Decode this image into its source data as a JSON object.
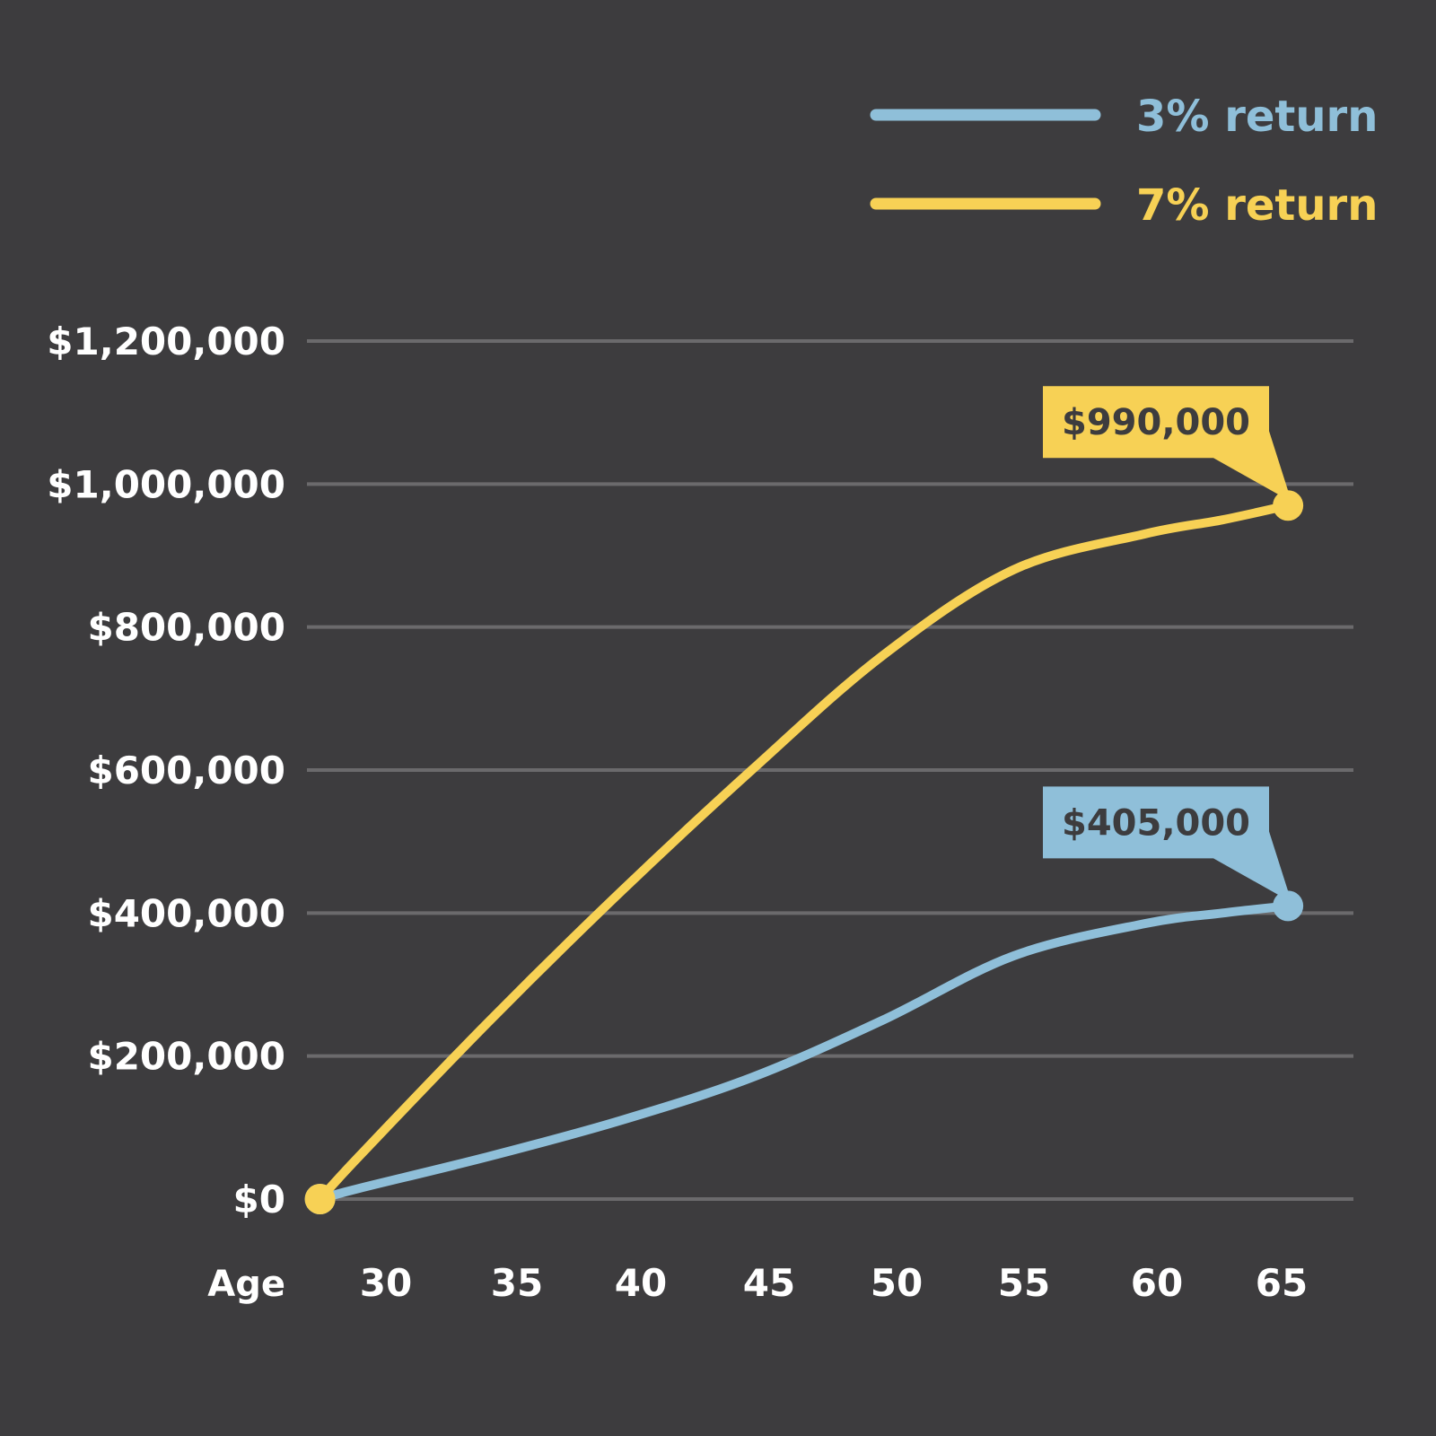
{
  "background": "#3d3c3e",
  "chart_data": {
    "type": "line",
    "xlabel": "Age",
    "ylabel": "",
    "title": "",
    "x_ticks": [
      30,
      35,
      40,
      45,
      50,
      55,
      60,
      65
    ],
    "y_ticks": [
      0,
      200000,
      400000,
      600000,
      800000,
      1000000,
      1200000
    ],
    "y_tick_labels": [
      "$0",
      "$200,000",
      "$400,000",
      "$600,000",
      "$800,000",
      "$1,000,000",
      "$1,200,000"
    ],
    "xlim": [
      28,
      68
    ],
    "ylim": [
      0,
      1200000
    ],
    "grid": true,
    "legend_position": "top-right",
    "series": [
      {
        "name": "3% return",
        "color": "#8fbfd9",
        "x": [
          28.5,
          30,
          35,
          40,
          45,
          50,
          55,
          60,
          63,
          65.5
        ],
        "y": [
          0,
          15000,
          60000,
          110000,
          170000,
          250000,
          340000,
          385000,
          400000,
          410000
        ],
        "end_label": "$405,000"
      },
      {
        "name": "7% return",
        "color": "#f7d155",
        "x": [
          28.5,
          30,
          35,
          40,
          45,
          50,
          55,
          60,
          63,
          65.5
        ],
        "y": [
          0,
          60000,
          250000,
          430000,
          600000,
          760000,
          880000,
          930000,
          950000,
          970000
        ],
        "end_label": "$990,000"
      }
    ]
  }
}
